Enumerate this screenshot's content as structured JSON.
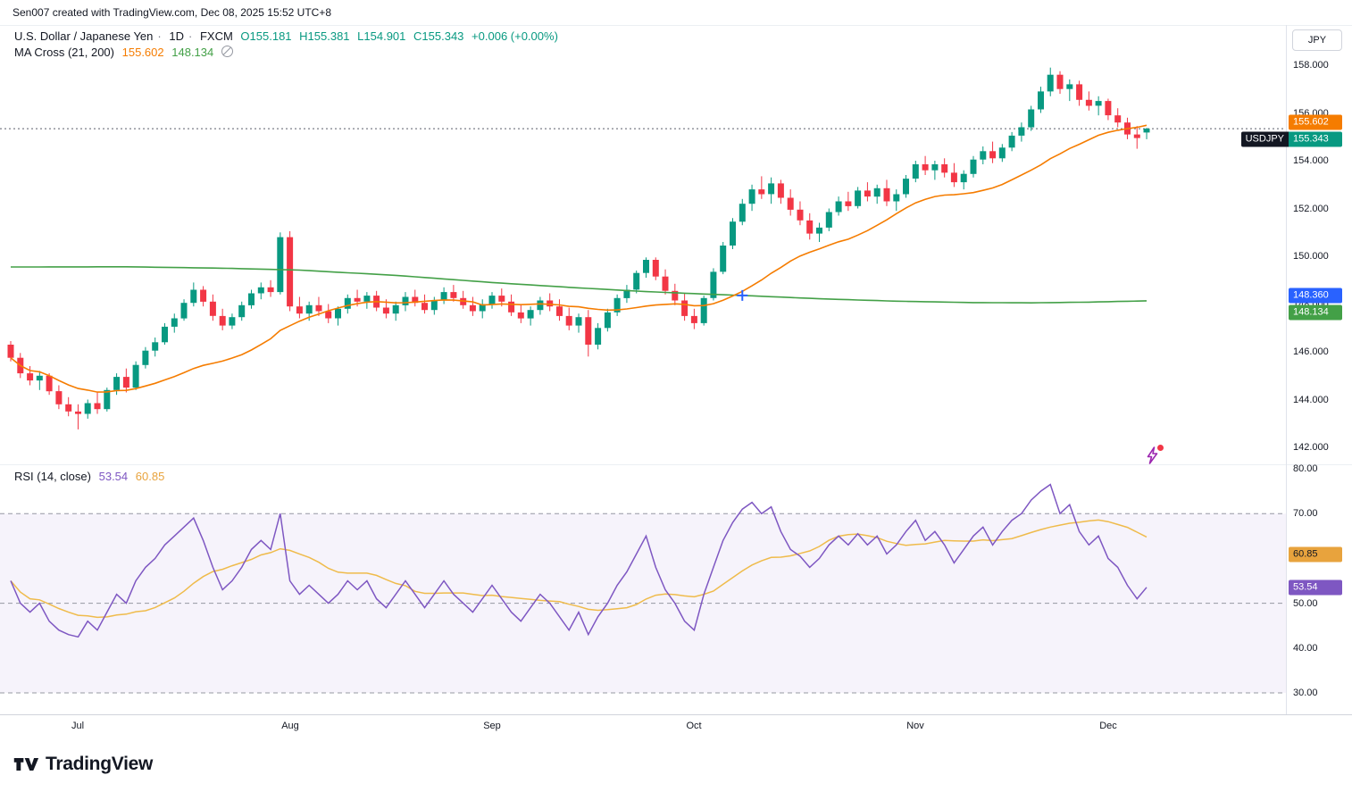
{
  "attribution": "Sen007 created with TradingView.com, Dec 08, 2025 15:52 UTC+8",
  "header": {
    "title": "U.S. Dollar / Japanese Yen",
    "sep": "·",
    "interval": "1D",
    "exchange": "FXCM",
    "ohlc": [
      "O155.181",
      "H155.381",
      "L154.901",
      "C155.343"
    ],
    "change": "+0.006 (+0.00%)"
  },
  "ma_cross": {
    "label": "MA Cross (21, 200)",
    "fast": "155.602",
    "slow": "148.134",
    "icon": "circle-slash"
  },
  "rsi_legend": {
    "label": "RSI (14, close)",
    "value": "53.54",
    "ma_value": "60.85"
  },
  "price_scale": {
    "currency": "JPY",
    "ticks": [
      {
        "label": "158.000",
        "price": 158
      },
      {
        "label": "156.000",
        "price": 156
      },
      {
        "label": "154.000",
        "price": 154
      },
      {
        "label": "152.000",
        "price": 152
      },
      {
        "label": "150.000",
        "price": 150
      },
      {
        "label": "148.000",
        "price": 148
      },
      {
        "label": "146.000",
        "price": 146
      },
      {
        "label": "144.000",
        "price": 144
      },
      {
        "label": "142.000",
        "price": 142
      }
    ],
    "badges": [
      {
        "name": "ma-fast-price-badge",
        "label": "155.602",
        "price": 155.602,
        "bg": "#F57C00",
        "fg": "#FFFFFF"
      },
      {
        "name": "last-price-badge",
        "label": "155.343",
        "price": 155.343,
        "bg": "#089981",
        "fg": "#FFFFFF",
        "tag": "USDJPY"
      },
      {
        "name": "crosshair-price-badge",
        "label": "148.360",
        "price": 148.36,
        "bg": "#2962FF",
        "fg": "#FFFFFF"
      },
      {
        "name": "ma-slow-price-badge",
        "label": "148.134",
        "price": 148.134,
        "bg": "#43A047",
        "fg": "#FFFFFF"
      }
    ]
  },
  "rsi_scale": {
    "ticks": [
      {
        "label": "80.00",
        "value": 80
      },
      {
        "label": "70.00",
        "value": 70
      },
      {
        "label": "50.00",
        "value": 50
      },
      {
        "label": "40.00",
        "value": 40
      },
      {
        "label": "30.00",
        "value": 30
      }
    ],
    "badges": [
      {
        "name": "rsi-ma-badge",
        "label": "60.85",
        "value": 60.85,
        "bg": "#E8A33D",
        "fg": "#131722"
      },
      {
        "name": "rsi-value-badge",
        "label": "53.54",
        "value": 53.54,
        "bg": "#7E57C2",
        "fg": "#FFFFFF"
      }
    ]
  },
  "time_axis": {
    "ticks": [
      {
        "label": "Jul",
        "index": 7
      },
      {
        "label": "Aug",
        "index": 29
      },
      {
        "label": "Sep",
        "index": 50
      },
      {
        "label": "Oct",
        "index": 71
      },
      {
        "label": "Nov",
        "index": 94
      },
      {
        "label": "Dec",
        "index": 114
      }
    ]
  },
  "logo_text": "TradingView",
  "chart_data": {
    "type": "candlestick",
    "symbol": "USDJPY",
    "title": "U.S. Dollar / Japanese Yen",
    "interval": "1D",
    "exchange": "FXCM",
    "last": {
      "open": 155.181,
      "high": 155.381,
      "low": 154.901,
      "close": 155.343,
      "change": 0.006,
      "change_pct": 0.0
    },
    "colors": {
      "up": "#089981",
      "down": "#F23645",
      "ma_fast": "#F57C00",
      "ma_slow": "#43A047",
      "rsi": "#7E57C2",
      "rsi_ma": "#EFBB4B",
      "crosshair": "#2962FF",
      "price_line": "#5A5E6B"
    },
    "y_axis": {
      "min": 142,
      "max": 158,
      "currency": "JPY"
    },
    "candles": [
      [
        146.3,
        146.45,
        145.6,
        145.75
      ],
      [
        145.75,
        145.95,
        144.9,
        145.1
      ],
      [
        145.1,
        145.4,
        144.6,
        144.8
      ],
      [
        144.8,
        145.2,
        144.4,
        145.0
      ],
      [
        145.0,
        145.1,
        144.2,
        144.35
      ],
      [
        144.35,
        144.6,
        143.6,
        143.8
      ],
      [
        143.8,
        144.1,
        143.3,
        143.5
      ],
      [
        143.5,
        143.8,
        142.75,
        143.4
      ],
      [
        143.4,
        144.0,
        143.2,
        143.85
      ],
      [
        143.85,
        144.3,
        143.4,
        143.6
      ],
      [
        143.6,
        144.5,
        143.5,
        144.4
      ],
      [
        144.4,
        145.1,
        144.2,
        144.95
      ],
      [
        144.95,
        145.3,
        144.3,
        144.5
      ],
      [
        144.5,
        145.6,
        144.4,
        145.45
      ],
      [
        145.45,
        146.2,
        145.3,
        146.05
      ],
      [
        146.05,
        146.6,
        145.8,
        146.4
      ],
      [
        146.4,
        147.2,
        146.3,
        147.05
      ],
      [
        147.05,
        147.6,
        146.8,
        147.4
      ],
      [
        147.4,
        148.2,
        147.3,
        148.05
      ],
      [
        148.05,
        148.9,
        147.9,
        148.6
      ],
      [
        148.6,
        148.75,
        147.9,
        148.1
      ],
      [
        148.1,
        148.4,
        147.3,
        147.5
      ],
      [
        147.5,
        147.8,
        146.9,
        147.1
      ],
      [
        147.1,
        147.6,
        146.95,
        147.45
      ],
      [
        147.45,
        148.1,
        147.3,
        147.95
      ],
      [
        147.95,
        148.6,
        147.8,
        148.45
      ],
      [
        148.45,
        148.9,
        148.2,
        148.7
      ],
      [
        148.7,
        149.0,
        148.3,
        148.5
      ],
      [
        148.5,
        151.0,
        148.4,
        150.8
      ],
      [
        150.8,
        151.05,
        147.7,
        147.9
      ],
      [
        147.9,
        148.3,
        147.4,
        147.6
      ],
      [
        147.6,
        148.1,
        147.3,
        147.95
      ],
      [
        147.95,
        148.3,
        147.5,
        147.7
      ],
      [
        147.7,
        148.0,
        147.2,
        147.4
      ],
      [
        147.4,
        147.9,
        147.1,
        147.8
      ],
      [
        147.8,
        148.4,
        147.6,
        148.25
      ],
      [
        148.25,
        148.6,
        147.9,
        148.1
      ],
      [
        148.1,
        148.5,
        147.8,
        148.35
      ],
      [
        148.35,
        148.55,
        147.7,
        147.85
      ],
      [
        147.85,
        148.2,
        147.4,
        147.6
      ],
      [
        147.6,
        148.1,
        147.3,
        147.95
      ],
      [
        147.95,
        148.5,
        147.7,
        148.3
      ],
      [
        148.3,
        148.6,
        147.9,
        148.05
      ],
      [
        148.05,
        148.4,
        147.6,
        147.75
      ],
      [
        147.75,
        148.3,
        147.55,
        148.15
      ],
      [
        148.15,
        148.7,
        148.0,
        148.5
      ],
      [
        148.5,
        148.8,
        148.1,
        148.25
      ],
      [
        148.25,
        148.55,
        147.8,
        147.95
      ],
      [
        147.95,
        148.3,
        147.5,
        147.7
      ],
      [
        147.7,
        148.2,
        147.4,
        148.0
      ],
      [
        148.0,
        148.5,
        147.8,
        148.35
      ],
      [
        148.35,
        148.65,
        147.9,
        148.1
      ],
      [
        148.1,
        148.4,
        147.5,
        147.65
      ],
      [
        147.65,
        148.0,
        147.2,
        147.4
      ],
      [
        147.4,
        147.9,
        147.1,
        147.75
      ],
      [
        147.75,
        148.3,
        147.55,
        148.15
      ],
      [
        148.15,
        148.45,
        147.7,
        147.9
      ],
      [
        147.9,
        148.2,
        147.3,
        147.5
      ],
      [
        147.5,
        147.85,
        146.9,
        147.1
      ],
      [
        147.1,
        147.6,
        146.8,
        147.45
      ],
      [
        147.45,
        147.75,
        145.8,
        146.3
      ],
      [
        146.3,
        147.2,
        146.1,
        147.0
      ],
      [
        147.0,
        147.8,
        146.85,
        147.65
      ],
      [
        147.65,
        148.4,
        147.5,
        148.25
      ],
      [
        148.25,
        148.8,
        148.05,
        148.6
      ],
      [
        148.6,
        149.4,
        148.45,
        149.3
      ],
      [
        149.3,
        149.95,
        149.1,
        149.85
      ],
      [
        149.85,
        149.95,
        149.0,
        149.15
      ],
      [
        149.15,
        149.45,
        148.4,
        148.55
      ],
      [
        148.55,
        148.85,
        147.95,
        148.15
      ],
      [
        148.15,
        148.45,
        147.3,
        147.5
      ],
      [
        147.5,
        147.8,
        146.95,
        147.2
      ],
      [
        147.2,
        148.35,
        147.1,
        148.25
      ],
      [
        148.25,
        149.5,
        148.15,
        149.35
      ],
      [
        149.35,
        150.6,
        149.25,
        150.45
      ],
      [
        150.45,
        151.6,
        150.3,
        151.45
      ],
      [
        151.45,
        152.4,
        151.3,
        152.2
      ],
      [
        152.2,
        153.0,
        151.9,
        152.8
      ],
      [
        152.8,
        153.35,
        152.4,
        152.6
      ],
      [
        152.6,
        153.3,
        152.2,
        153.05
      ],
      [
        153.05,
        153.2,
        152.2,
        152.45
      ],
      [
        152.45,
        152.8,
        151.7,
        151.95
      ],
      [
        151.95,
        152.3,
        151.3,
        151.5
      ],
      [
        151.5,
        151.8,
        150.7,
        150.95
      ],
      [
        150.95,
        151.4,
        150.6,
        151.2
      ],
      [
        151.2,
        152.0,
        151.05,
        151.85
      ],
      [
        151.85,
        152.5,
        151.7,
        152.3
      ],
      [
        152.3,
        152.7,
        151.9,
        152.1
      ],
      [
        152.1,
        152.9,
        152.0,
        152.75
      ],
      [
        152.75,
        153.1,
        152.3,
        152.5
      ],
      [
        152.5,
        153.0,
        152.2,
        152.85
      ],
      [
        152.85,
        153.2,
        152.1,
        152.3
      ],
      [
        152.3,
        152.8,
        151.9,
        152.6
      ],
      [
        152.6,
        153.4,
        152.45,
        153.25
      ],
      [
        153.25,
        154.0,
        153.1,
        153.85
      ],
      [
        153.85,
        154.2,
        153.4,
        153.6
      ],
      [
        153.6,
        154.0,
        153.2,
        153.85
      ],
      [
        153.85,
        154.1,
        153.3,
        153.5
      ],
      [
        153.5,
        153.9,
        152.9,
        153.1
      ],
      [
        153.1,
        153.6,
        152.8,
        153.45
      ],
      [
        153.45,
        154.2,
        153.3,
        154.05
      ],
      [
        154.05,
        154.6,
        153.85,
        154.4
      ],
      [
        154.4,
        154.8,
        153.9,
        154.1
      ],
      [
        154.1,
        154.7,
        153.95,
        154.55
      ],
      [
        154.55,
        155.2,
        154.4,
        155.05
      ],
      [
        155.05,
        155.6,
        154.8,
        155.4
      ],
      [
        155.4,
        156.3,
        155.25,
        156.15
      ],
      [
        156.15,
        157.1,
        156.0,
        156.9
      ],
      [
        156.9,
        157.9,
        156.7,
        157.6
      ],
      [
        157.6,
        157.75,
        156.8,
        157.0
      ],
      [
        157.0,
        157.4,
        156.5,
        157.2
      ],
      [
        157.2,
        157.35,
        156.3,
        156.55
      ],
      [
        156.55,
        156.9,
        156.1,
        156.3
      ],
      [
        156.3,
        156.7,
        155.9,
        156.5
      ],
      [
        156.5,
        156.6,
        155.7,
        155.9
      ],
      [
        155.9,
        156.2,
        155.4,
        155.6
      ],
      [
        155.6,
        155.8,
        154.9,
        155.1
      ],
      [
        155.1,
        155.45,
        154.5,
        154.95
      ],
      [
        155.181,
        155.381,
        154.901,
        155.343
      ]
    ],
    "ma_fast": {
      "name": "MA 21",
      "length": 21,
      "last": 155.602
    },
    "ma_slow": {
      "name": "MA 200",
      "length": 200,
      "last": 148.134,
      "points": [
        [
          0,
          149.55
        ],
        [
          12,
          149.56
        ],
        [
          22,
          149.5
        ],
        [
          30,
          149.42
        ],
        [
          40,
          149.2
        ],
        [
          50,
          148.9
        ],
        [
          58,
          148.7
        ],
        [
          66,
          148.52
        ],
        [
          72,
          148.42
        ],
        [
          76,
          148.36
        ],
        [
          84,
          148.22
        ],
        [
          92,
          148.12
        ],
        [
          100,
          148.06
        ],
        [
          106,
          148.05
        ],
        [
          112,
          148.08
        ],
        [
          118,
          148.134
        ]
      ]
    },
    "rsi": {
      "name": "RSI",
      "length": 14,
      "source": "close",
      "last": 53.54,
      "range": [
        30,
        80
      ],
      "levels": [
        70,
        50,
        30
      ],
      "ma": {
        "length": 14,
        "last": 60.85
      },
      "values": [
        55,
        50,
        48,
        50,
        46,
        44,
        43,
        42.5,
        46,
        44,
        48,
        52,
        50,
        55,
        58,
        60,
        63,
        65,
        67,
        69,
        64,
        58,
        53,
        55,
        58,
        62,
        64,
        62,
        70,
        55,
        52,
        54,
        52,
        50,
        52,
        55,
        53,
        55,
        51,
        49,
        52,
        55,
        52,
        49,
        52,
        55,
        52,
        50,
        48,
        51,
        54,
        51,
        48,
        46,
        49,
        52,
        50,
        47,
        44,
        48,
        43,
        47,
        50,
        54,
        57,
        61,
        65,
        58,
        53,
        50,
        46,
        44,
        52,
        58,
        64,
        68,
        71,
        72.5,
        70,
        71.5,
        66,
        62,
        60.5,
        58,
        60,
        63,
        65,
        63,
        65.5,
        63,
        65,
        61,
        63,
        66,
        68.5,
        64,
        66,
        63,
        59,
        62,
        65,
        67,
        63,
        66,
        68.5,
        70,
        73,
        75,
        76.5,
        70,
        72,
        66,
        63,
        65,
        60,
        58,
        54,
        51,
        53.54
      ]
    },
    "crosshair": {
      "index": 76,
      "price": 148.36
    }
  }
}
